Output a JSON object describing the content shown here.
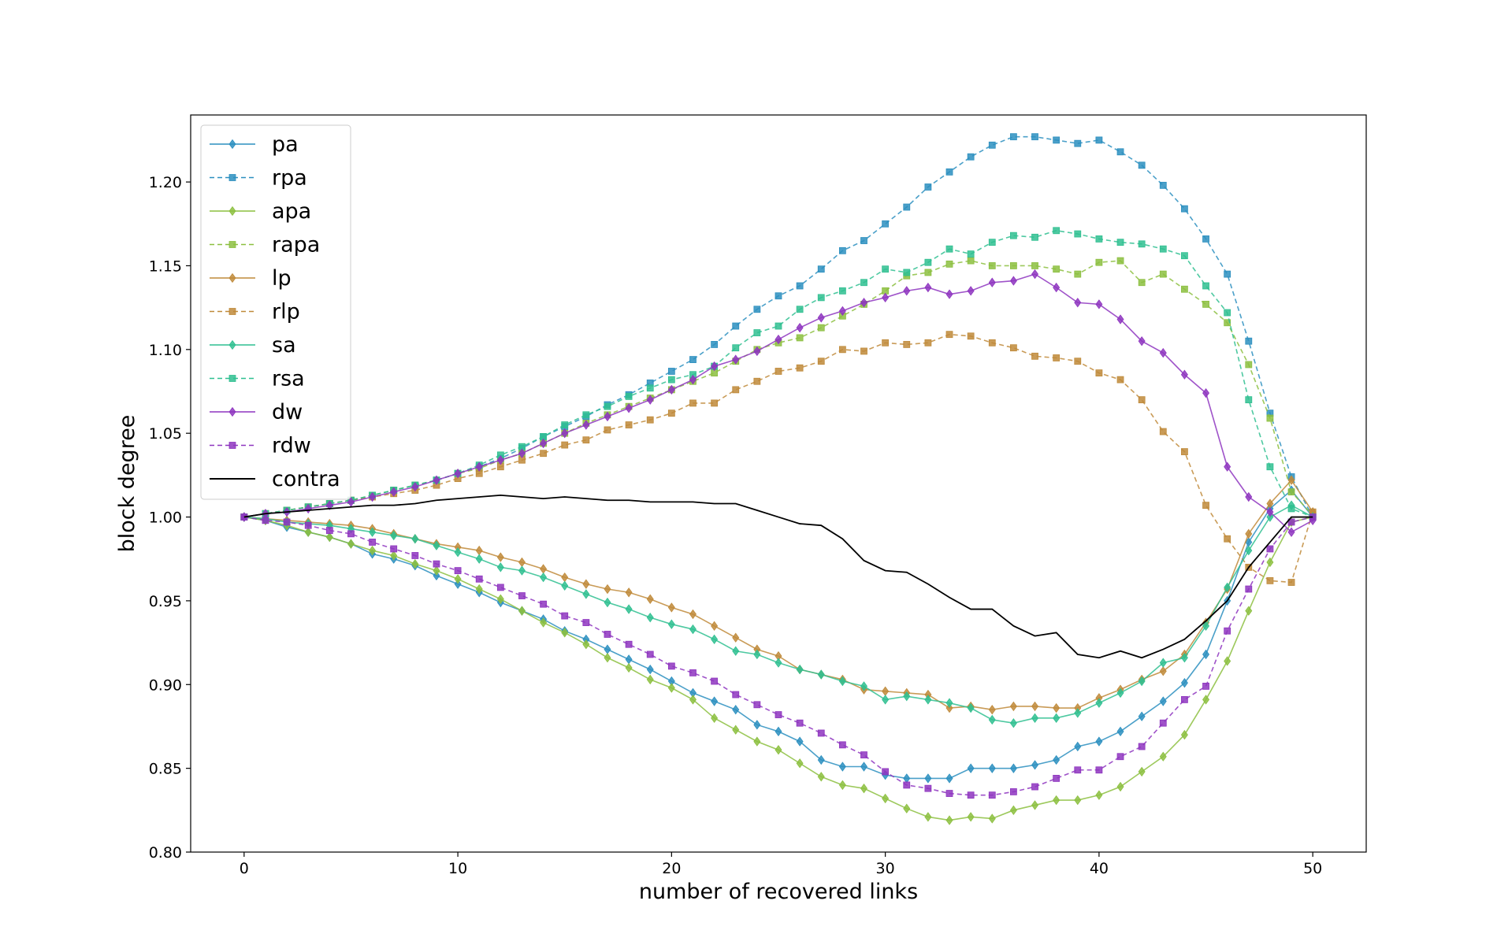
{
  "chart_data": {
    "type": "line",
    "title": "",
    "xlabel": "number of recovered links",
    "ylabel": "block degree",
    "xlim": [
      -2.5,
      52.5
    ],
    "ylim": [
      0.8,
      1.24
    ],
    "x_ticks": [
      "0",
      "10",
      "20",
      "30",
      "40",
      "50"
    ],
    "y_ticks": [
      "0.80",
      "0.85",
      "0.90",
      "0.95",
      "1.00",
      "1.05",
      "1.10",
      "1.15",
      "1.20"
    ],
    "grid": false,
    "legend_position": "upper-left",
    "x": [
      0,
      1,
      2,
      3,
      4,
      5,
      6,
      7,
      8,
      9,
      10,
      11,
      12,
      13,
      14,
      15,
      16,
      17,
      18,
      19,
      20,
      21,
      22,
      23,
      24,
      25,
      26,
      27,
      28,
      29,
      30,
      31,
      32,
      33,
      34,
      35,
      36,
      37,
      38,
      39,
      40,
      41,
      42,
      43,
      44,
      45,
      46,
      47,
      48,
      49,
      50
    ],
    "series": [
      {
        "name": "pa",
        "color": "#2c8fbf",
        "linestyle": "solid",
        "marker": "diamond",
        "values": [
          1.0,
          0.998,
          0.994,
          0.991,
          0.988,
          0.984,
          0.978,
          0.975,
          0.971,
          0.965,
          0.96,
          0.955,
          0.949,
          0.944,
          0.939,
          0.932,
          0.927,
          0.921,
          0.915,
          0.909,
          0.902,
          0.895,
          0.89,
          0.885,
          0.876,
          0.872,
          0.866,
          0.855,
          0.851,
          0.851,
          0.846,
          0.844,
          0.844,
          0.844,
          0.85,
          0.85,
          0.85,
          0.852,
          0.855,
          0.863,
          0.866,
          0.872,
          0.881,
          0.89,
          0.901,
          0.918,
          0.95,
          0.985,
          1.005,
          1.016,
          1.0
        ]
      },
      {
        "name": "rpa",
        "color": "#2c8fbf",
        "linestyle": "dashed",
        "marker": "square",
        "values": [
          1.0,
          1.002,
          1.004,
          1.006,
          1.008,
          1.01,
          1.013,
          1.016,
          1.019,
          1.022,
          1.026,
          1.03,
          1.035,
          1.041,
          1.048,
          1.054,
          1.06,
          1.067,
          1.073,
          1.08,
          1.087,
          1.094,
          1.103,
          1.114,
          1.124,
          1.132,
          1.138,
          1.148,
          1.159,
          1.165,
          1.175,
          1.185,
          1.197,
          1.206,
          1.215,
          1.222,
          1.227,
          1.227,
          1.225,
          1.223,
          1.225,
          1.218,
          1.21,
          1.198,
          1.184,
          1.166,
          1.145,
          1.105,
          1.062,
          1.024,
          1.0
        ]
      },
      {
        "name": "apa",
        "color": "#8cbf3f",
        "linestyle": "solid",
        "marker": "diamond",
        "values": [
          1.0,
          0.998,
          0.995,
          0.991,
          0.988,
          0.984,
          0.98,
          0.977,
          0.972,
          0.968,
          0.963,
          0.957,
          0.951,
          0.944,
          0.937,
          0.931,
          0.924,
          0.916,
          0.91,
          0.903,
          0.898,
          0.891,
          0.88,
          0.873,
          0.866,
          0.861,
          0.853,
          0.845,
          0.84,
          0.838,
          0.832,
          0.826,
          0.821,
          0.819,
          0.821,
          0.82,
          0.825,
          0.828,
          0.831,
          0.831,
          0.834,
          0.839,
          0.848,
          0.857,
          0.87,
          0.891,
          0.914,
          0.944,
          0.973,
          0.997,
          1.0
        ]
      },
      {
        "name": "rapa",
        "color": "#8cbf3f",
        "linestyle": "dashed",
        "marker": "square",
        "values": [
          1.0,
          1.002,
          1.004,
          1.006,
          1.008,
          1.01,
          1.013,
          1.016,
          1.019,
          1.022,
          1.026,
          1.029,
          1.034,
          1.038,
          1.044,
          1.05,
          1.056,
          1.061,
          1.066,
          1.071,
          1.076,
          1.081,
          1.086,
          1.093,
          1.1,
          1.104,
          1.107,
          1.113,
          1.12,
          1.127,
          1.135,
          1.144,
          1.146,
          1.151,
          1.153,
          1.15,
          1.15,
          1.15,
          1.148,
          1.145,
          1.152,
          1.153,
          1.14,
          1.145,
          1.136,
          1.127,
          1.116,
          1.091,
          1.059,
          1.015,
          1.001
        ]
      },
      {
        "name": "lp",
        "color": "#bf8a3a",
        "linestyle": "solid",
        "marker": "diamond",
        "values": [
          1.0,
          0.999,
          0.998,
          0.997,
          0.996,
          0.995,
          0.993,
          0.99,
          0.987,
          0.984,
          0.982,
          0.98,
          0.976,
          0.973,
          0.969,
          0.964,
          0.96,
          0.957,
          0.955,
          0.951,
          0.946,
          0.942,
          0.935,
          0.928,
          0.921,
          0.917,
          0.909,
          0.906,
          0.903,
          0.897,
          0.896,
          0.895,
          0.894,
          0.886,
          0.887,
          0.885,
          0.887,
          0.887,
          0.886,
          0.886,
          0.892,
          0.897,
          0.903,
          0.908,
          0.918,
          0.937,
          0.957,
          0.99,
          1.008,
          1.022,
          1.003
        ]
      },
      {
        "name": "rlp",
        "color": "#bf8a3a",
        "linestyle": "dashed",
        "marker": "square",
        "values": [
          1.0,
          1.002,
          1.004,
          1.006,
          1.008,
          1.01,
          1.012,
          1.014,
          1.016,
          1.019,
          1.023,
          1.026,
          1.03,
          1.034,
          1.038,
          1.043,
          1.046,
          1.052,
          1.055,
          1.058,
          1.062,
          1.068,
          1.068,
          1.076,
          1.081,
          1.087,
          1.089,
          1.093,
          1.1,
          1.099,
          1.104,
          1.103,
          1.104,
          1.109,
          1.108,
          1.104,
          1.101,
          1.096,
          1.095,
          1.093,
          1.086,
          1.082,
          1.07,
          1.051,
          1.039,
          1.007,
          0.987,
          0.97,
          0.962,
          0.961,
          1.003
        ]
      },
      {
        "name": "sa",
        "color": "#2fbf90",
        "linestyle": "solid",
        "marker": "diamond",
        "values": [
          1.0,
          0.999,
          0.997,
          0.996,
          0.995,
          0.993,
          0.991,
          0.989,
          0.987,
          0.983,
          0.979,
          0.975,
          0.97,
          0.968,
          0.964,
          0.959,
          0.954,
          0.949,
          0.945,
          0.94,
          0.936,
          0.933,
          0.927,
          0.92,
          0.918,
          0.913,
          0.909,
          0.906,
          0.902,
          0.899,
          0.891,
          0.893,
          0.891,
          0.889,
          0.886,
          0.879,
          0.877,
          0.88,
          0.88,
          0.883,
          0.889,
          0.895,
          0.902,
          0.913,
          0.916,
          0.935,
          0.958,
          0.98,
          1.0,
          1.007,
          1.0
        ]
      },
      {
        "name": "rsa",
        "color": "#2fbf90",
        "linestyle": "dashed",
        "marker": "square",
        "values": [
          1.0,
          1.002,
          1.004,
          1.006,
          1.008,
          1.01,
          1.013,
          1.016,
          1.019,
          1.022,
          1.026,
          1.031,
          1.037,
          1.042,
          1.048,
          1.055,
          1.061,
          1.066,
          1.072,
          1.077,
          1.082,
          1.085,
          1.09,
          1.101,
          1.11,
          1.114,
          1.124,
          1.131,
          1.135,
          1.14,
          1.148,
          1.146,
          1.152,
          1.16,
          1.157,
          1.164,
          1.168,
          1.167,
          1.171,
          1.169,
          1.166,
          1.164,
          1.163,
          1.16,
          1.156,
          1.138,
          1.122,
          1.07,
          1.03,
          1.005,
          1.0
        ]
      },
      {
        "name": "dw",
        "color": "#8e35bf",
        "linestyle": "solid",
        "marker": "diamond",
        "values": [
          1.0,
          1.002,
          1.003,
          1.005,
          1.007,
          1.009,
          1.012,
          1.015,
          1.018,
          1.022,
          1.026,
          1.03,
          1.034,
          1.038,
          1.044,
          1.05,
          1.055,
          1.06,
          1.065,
          1.07,
          1.076,
          1.082,
          1.09,
          1.094,
          1.099,
          1.106,
          1.113,
          1.119,
          1.123,
          1.128,
          1.131,
          1.135,
          1.137,
          1.133,
          1.135,
          1.14,
          1.141,
          1.145,
          1.137,
          1.128,
          1.127,
          1.118,
          1.105,
          1.098,
          1.085,
          1.074,
          1.03,
          1.012,
          1.003,
          0.991,
          0.998
        ]
      },
      {
        "name": "rdw",
        "color": "#8e35bf",
        "linestyle": "dashed",
        "marker": "square",
        "values": [
          1.0,
          0.998,
          0.997,
          0.995,
          0.992,
          0.99,
          0.985,
          0.981,
          0.977,
          0.972,
          0.968,
          0.963,
          0.958,
          0.953,
          0.948,
          0.941,
          0.937,
          0.93,
          0.924,
          0.918,
          0.911,
          0.907,
          0.902,
          0.894,
          0.888,
          0.882,
          0.877,
          0.871,
          0.864,
          0.858,
          0.848,
          0.84,
          0.838,
          0.835,
          0.834,
          0.834,
          0.836,
          0.839,
          0.844,
          0.849,
          0.849,
          0.857,
          0.863,
          0.877,
          0.891,
          0.899,
          0.932,
          0.957,
          0.981,
          0.997,
          1.0
        ]
      },
      {
        "name": "contra",
        "color": "#000000",
        "linestyle": "solid",
        "marker": "none",
        "values": [
          1.0,
          1.002,
          1.003,
          1.004,
          1.005,
          1.006,
          1.007,
          1.007,
          1.008,
          1.01,
          1.011,
          1.012,
          1.013,
          1.012,
          1.011,
          1.012,
          1.011,
          1.01,
          1.01,
          1.009,
          1.009,
          1.009,
          1.008,
          1.008,
          1.004,
          1.0,
          0.996,
          0.995,
          0.987,
          0.974,
          0.968,
          0.967,
          0.96,
          0.952,
          0.945,
          0.945,
          0.935,
          0.929,
          0.931,
          0.918,
          0.916,
          0.92,
          0.916,
          0.921,
          0.927,
          0.938,
          0.95,
          0.97,
          0.985,
          1.0,
          1.0
        ]
      }
    ]
  }
}
